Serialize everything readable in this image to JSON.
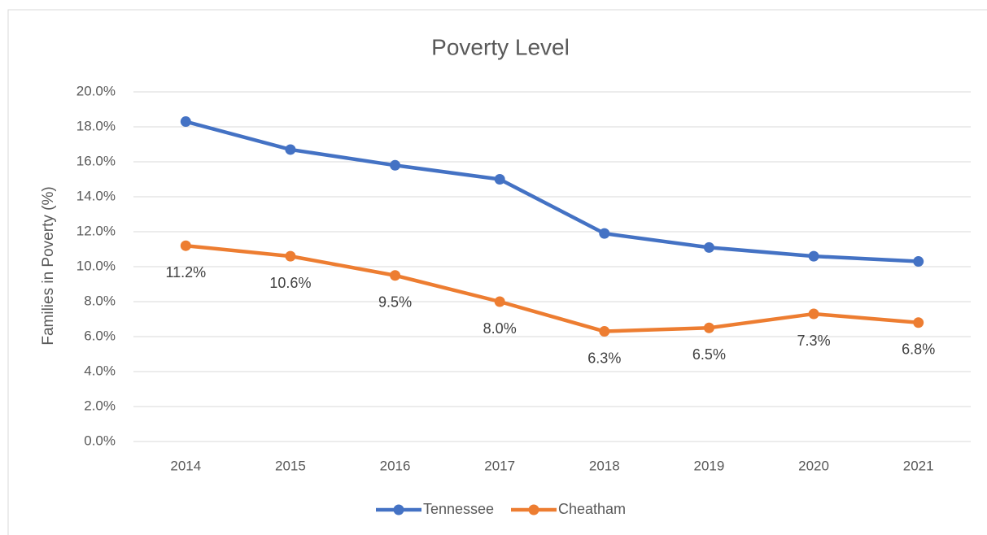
{
  "chart_data": {
    "type": "line",
    "title": "Poverty Level",
    "y_label": "Families in Poverty (%)",
    "categories": [
      "2014",
      "2015",
      "2016",
      "2017",
      "2018",
      "2019",
      "2020",
      "2021"
    ],
    "series": [
      {
        "name": "Tennessee",
        "color": "#4472c4",
        "values": [
          18.3,
          16.7,
          15.8,
          15.0,
          11.9,
          11.1,
          10.6,
          10.3
        ]
      },
      {
        "name": "Cheatham",
        "color": "#ed7d31",
        "values": [
          11.2,
          10.6,
          9.5,
          8.0,
          6.3,
          6.5,
          7.3,
          6.8
        ],
        "value_labels": [
          "11.2%",
          "10.6%",
          "9.5%",
          "8.0%",
          "6.3%",
          "6.5%",
          "7.3%",
          "6.8%"
        ]
      }
    ],
    "ylim": [
      0,
      20
    ],
    "yticks": [
      {
        "value": 0,
        "label": "0.0%"
      },
      {
        "value": 2,
        "label": "2.0%"
      },
      {
        "value": 4,
        "label": "4.0%"
      },
      {
        "value": 6,
        "label": "6.0%"
      },
      {
        "value": 8,
        "label": "8.0%"
      },
      {
        "value": 10,
        "label": "10.0%"
      },
      {
        "value": 12,
        "label": "12.0%"
      },
      {
        "value": 14,
        "label": "14.0%"
      },
      {
        "value": 16,
        "label": "16.0%"
      },
      {
        "value": 18,
        "label": "18.0%"
      },
      {
        "value": 20,
        "label": "20.0%"
      }
    ],
    "grid": true,
    "legend": "bottom"
  }
}
